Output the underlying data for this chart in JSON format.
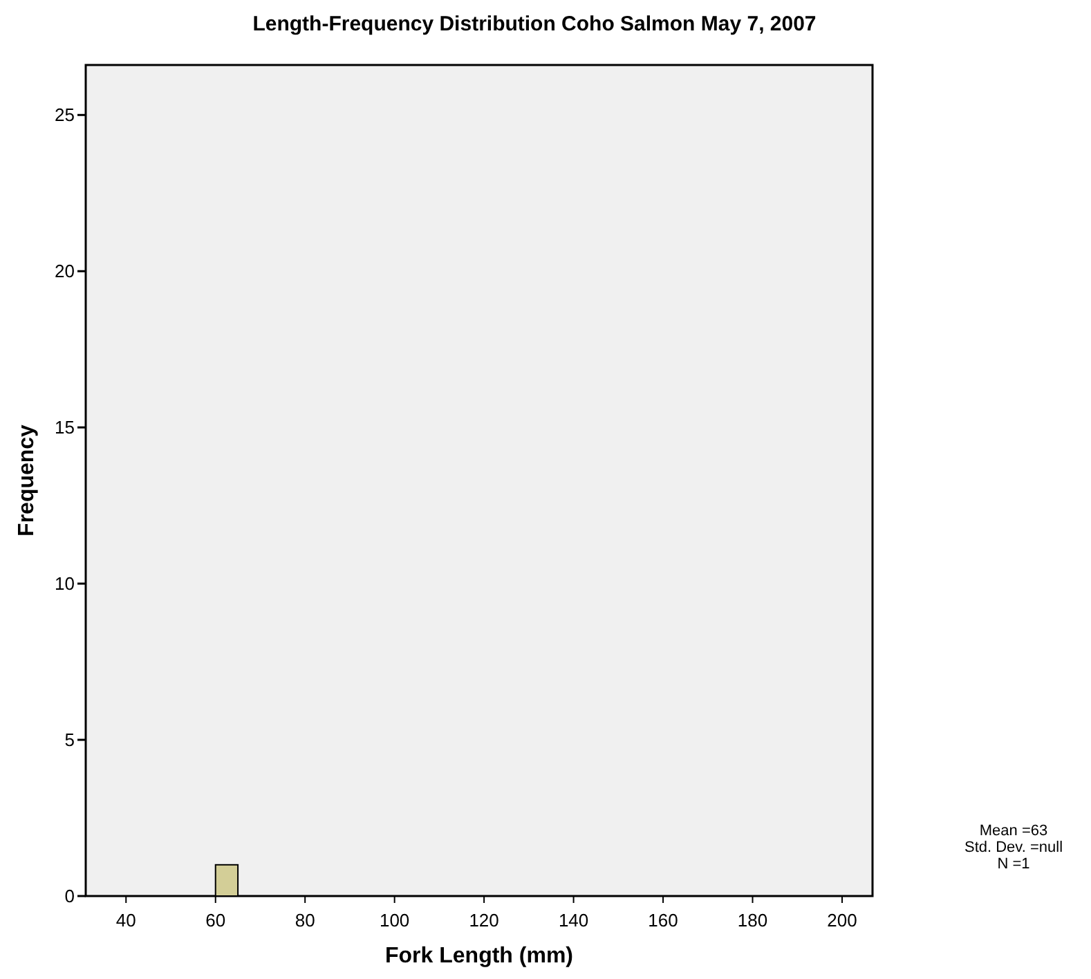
{
  "chart_data": {
    "type": "histogram",
    "title": "Length-Frequency Distribution Coho Salmon May 7, 2007",
    "xlabel": "Fork Length (mm)",
    "ylabel": "Frequency",
    "bins": [
      60,
      65
    ],
    "values": [
      1
    ],
    "color": "#d3ce97",
    "xlim": [
      31,
      206.8
    ],
    "xticks": [
      40,
      60,
      80,
      100,
      120,
      140,
      160,
      180,
      200
    ],
    "ylim": [
      0,
      26.6
    ],
    "yticks": [
      0,
      5,
      10,
      15,
      20,
      25
    ],
    "grid": false,
    "annotations": [
      "Mean =63",
      "Std. Dev. =null",
      "N =1"
    ]
  }
}
